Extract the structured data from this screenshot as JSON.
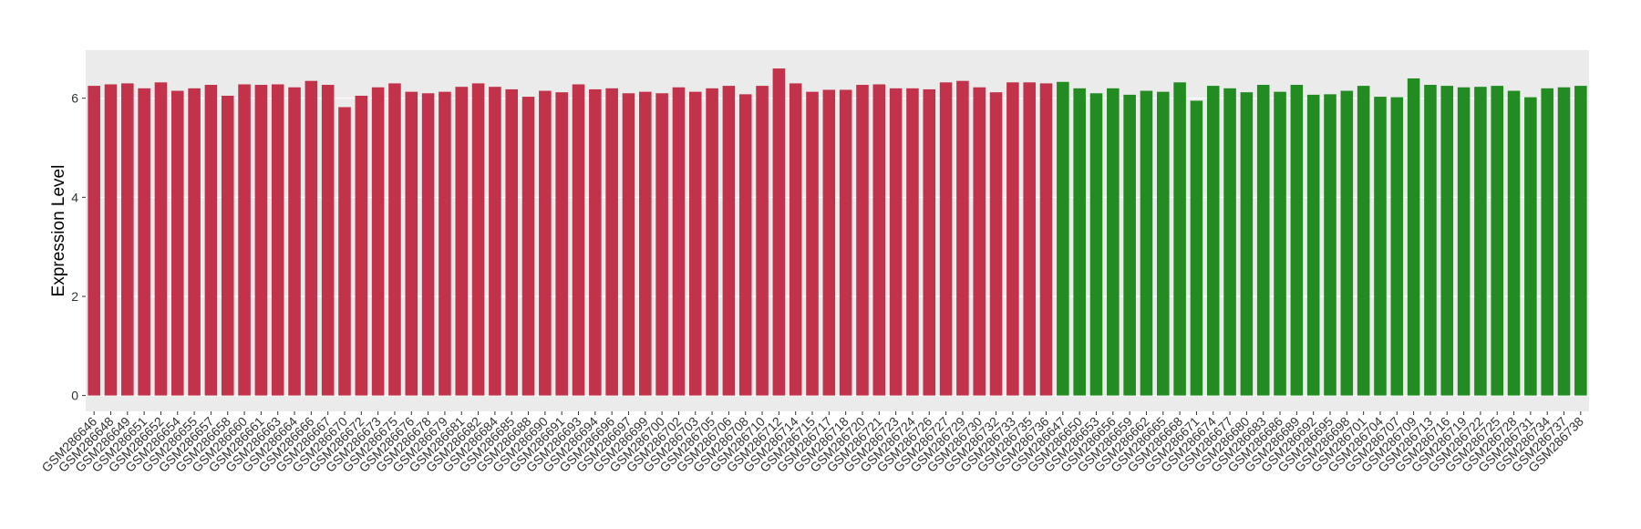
{
  "chart_data": {
    "type": "bar",
    "y_label": "Expression Level",
    "categories": [
      "GSM286646",
      "GSM286648",
      "GSM286649",
      "GSM286651",
      "GSM286652",
      "GSM286654",
      "GSM286655",
      "GSM286657",
      "GSM286658",
      "GSM286660",
      "GSM286661",
      "GSM286663",
      "GSM286664",
      "GSM286666",
      "GSM286667",
      "GSM286670",
      "GSM286672",
      "GSM286673",
      "GSM286675",
      "GSM286676",
      "GSM286678",
      "GSM286679",
      "GSM286681",
      "GSM286682",
      "GSM286684",
      "GSM286685",
      "GSM286688",
      "GSM286690",
      "GSM286691",
      "GSM286693",
      "GSM286694",
      "GSM286696",
      "GSM286697",
      "GSM286699",
      "GSM286700",
      "GSM286702",
      "GSM286703",
      "GSM286705",
      "GSM286706",
      "GSM286708",
      "GSM286710",
      "GSM286712",
      "GSM286714",
      "GSM286715",
      "GSM286717",
      "GSM286718",
      "GSM286720",
      "GSM286721",
      "GSM286723",
      "GSM286724",
      "GSM286726",
      "GSM286727",
      "GSM286729",
      "GSM286730",
      "GSM286732",
      "GSM286733",
      "GSM286735",
      "GSM286736",
      "GSM286647",
      "GSM286650",
      "GSM286653",
      "GSM286656",
      "GSM286659",
      "GSM286662",
      "GSM286665",
      "GSM286668",
      "GSM286671",
      "GSM286674",
      "GSM286677",
      "GSM286680",
      "GSM286683",
      "GSM286686",
      "GSM286689",
      "GSM286692",
      "GSM286695",
      "GSM286698",
      "GSM286701",
      "GSM286704",
      "GSM286707",
      "GSM286709",
      "GSM286713",
      "GSM286716",
      "GSM286719",
      "GSM286722",
      "GSM286725",
      "GSM286728",
      "GSM286731",
      "GSM286734",
      "GSM286737",
      "GSM286738"
    ],
    "series": [
      {
        "color": "#c3324b",
        "values": [
          6.25,
          6.28,
          6.3,
          6.2,
          6.32,
          6.15,
          6.2,
          6.27,
          6.05,
          6.28,
          6.27,
          6.28,
          6.22,
          6.35,
          6.27,
          5.82,
          6.05,
          6.22,
          6.3,
          6.13,
          6.1,
          6.13,
          6.23,
          6.3,
          6.23,
          6.18,
          6.03,
          6.15,
          6.12,
          6.28,
          6.18,
          6.2,
          6.1,
          6.13,
          6.1,
          6.22,
          6.13,
          6.2,
          6.25,
          6.08,
          6.25,
          6.6,
          6.3,
          6.13,
          6.17,
          6.17,
          6.27,
          6.28,
          6.2,
          6.2,
          6.18,
          6.32,
          6.35,
          6.22,
          6.12,
          6.32,
          6.32,
          6.3,
          null,
          null,
          null,
          null,
          null,
          null,
          null,
          null,
          null,
          null,
          null,
          null,
          null,
          null,
          null,
          null,
          null,
          null,
          null,
          null,
          null,
          null,
          null,
          null,
          null,
          null,
          null,
          null,
          null,
          null,
          null,
          null
        ]
      },
      {
        "color": "#228b22",
        "values": [
          null,
          null,
          null,
          null,
          null,
          null,
          null,
          null,
          null,
          null,
          null,
          null,
          null,
          null,
          null,
          null,
          null,
          null,
          null,
          null,
          null,
          null,
          null,
          null,
          null,
          null,
          null,
          null,
          null,
          null,
          null,
          null,
          null,
          null,
          null,
          null,
          null,
          null,
          null,
          null,
          null,
          null,
          null,
          null,
          null,
          null,
          null,
          null,
          null,
          null,
          null,
          null,
          null,
          null,
          null,
          null,
          null,
          null,
          6.33,
          6.2,
          6.1,
          6.2,
          6.07,
          6.15,
          6.13,
          6.32,
          5.95,
          6.25,
          6.2,
          6.12,
          6.27,
          6.13,
          6.27,
          6.07,
          6.08,
          6.15,
          6.25,
          6.03,
          6.02,
          6.4,
          6.27,
          6.25,
          6.22,
          6.23,
          6.25,
          6.15,
          6.02,
          6.2,
          6.22,
          6.25
        ]
      }
    ],
    "ylim": [
      -0.32,
      6.97
    ],
    "yticks": [
      0,
      2,
      4,
      6
    ],
    "grid": true
  }
}
